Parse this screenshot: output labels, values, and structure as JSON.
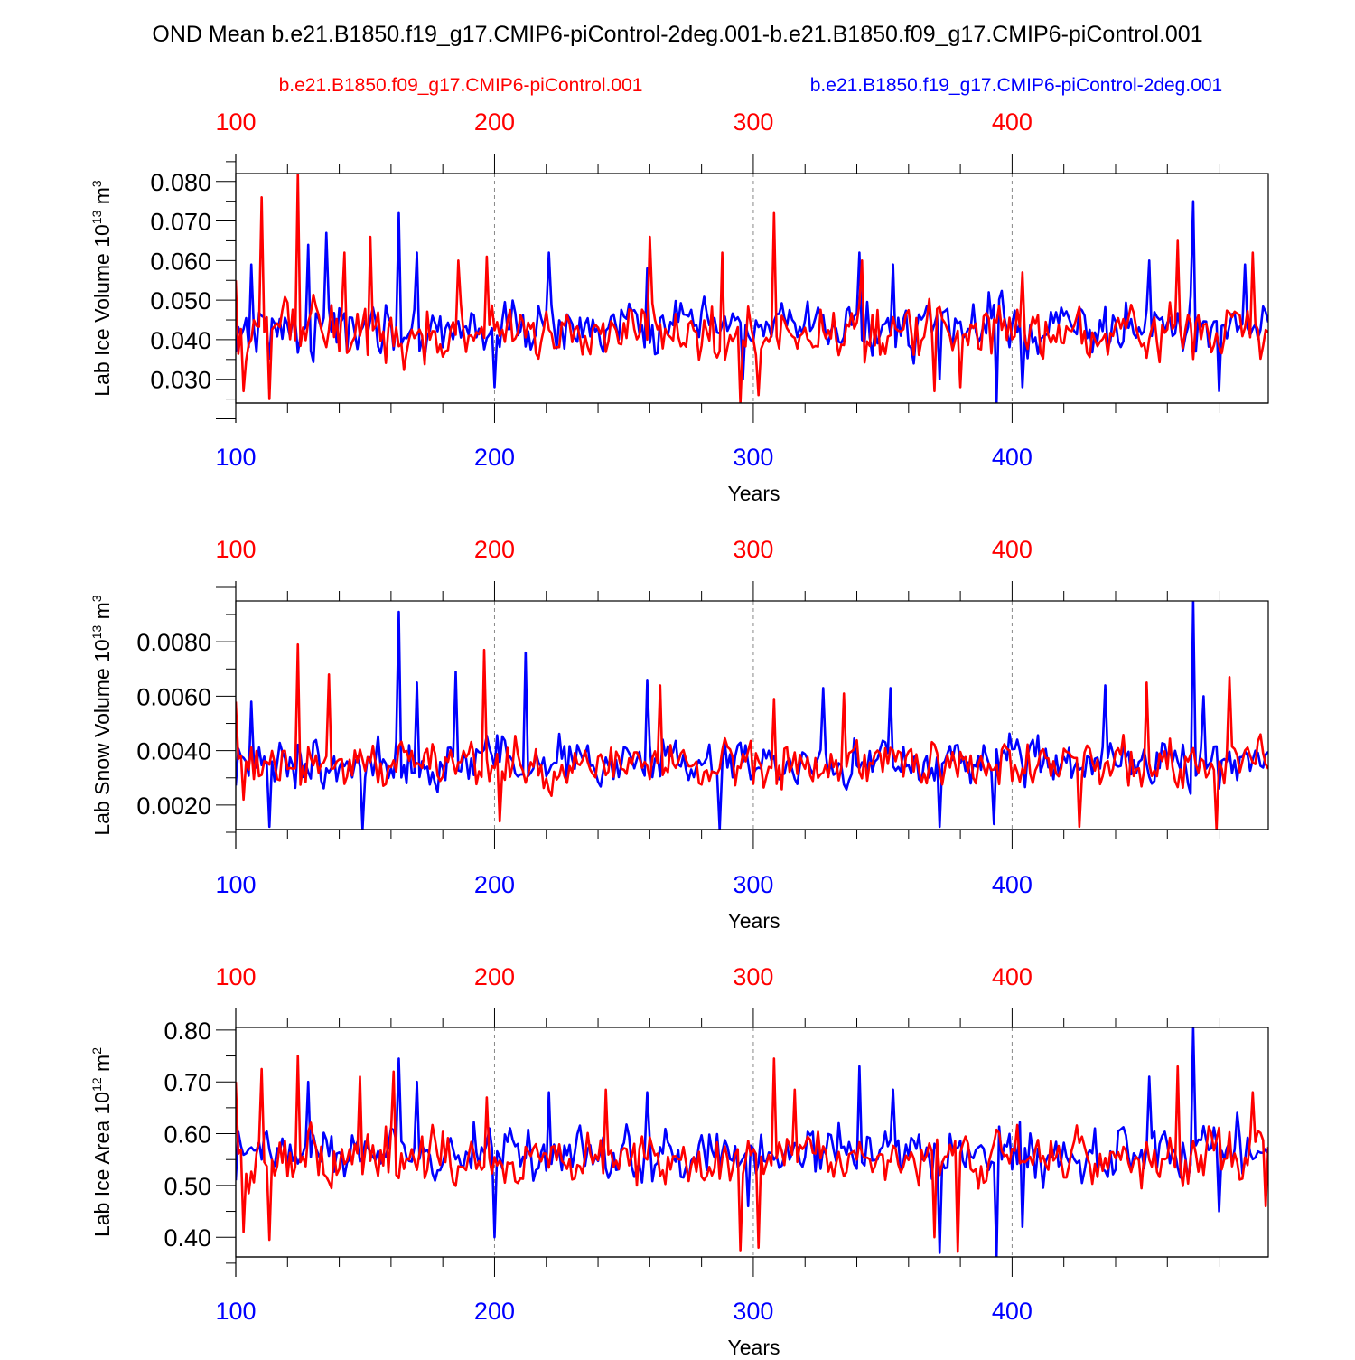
{
  "title": "OND Mean b.e21.B1850.f19_g17.CMIP6-piControl-2deg.001-b.e21.B1850.f09_g17.CMIP6-piControl.001",
  "colors": {
    "red_series": "#ff0000",
    "blue_series": "#0000ff",
    "axis": "#000000",
    "grid": "#888888"
  },
  "legend": {
    "red": "b.e21.B1850.f09_g17.CMIP6-piControl.001",
    "blue": "b.e21.B1850.f19_g17.CMIP6-piControl-2deg.001"
  },
  "chart_data": [
    {
      "type": "line",
      "title": "",
      "xlabel": "Years",
      "ylabel": {
        "pre": "Lab Ice Volume 10",
        "sup1": "13",
        "mid": " m",
        "sup2": "3"
      },
      "xlim": [
        100,
        499
      ],
      "ylim": [
        0.024,
        0.082
      ],
      "xticks": [
        "100",
        "200",
        "300",
        "400"
      ],
      "yticks": [
        {
          "v": 0.03,
          "label": "0.030"
        },
        {
          "v": 0.04,
          "label": "0.040"
        },
        {
          "v": 0.05,
          "label": "0.050"
        },
        {
          "v": 0.06,
          "label": "0.060"
        },
        {
          "v": 0.07,
          "label": "0.070"
        },
        {
          "v": 0.08,
          "label": "0.080"
        }
      ],
      "grid": "vertical dashed at 200, 300, 400",
      "series": [
        {
          "name": "b.e21.B1850.f19_g17.CMIP6-piControl-2deg.001",
          "color": "#0000ff",
          "summary": {
            "mean": 0.043,
            "amplitude": 0.008,
            "min": 0.024,
            "max": 0.075,
            "peaks": [
              [
                106,
                0.059
              ],
              [
                128,
                0.064
              ],
              [
                135,
                0.067
              ],
              [
                163,
                0.072
              ],
              [
                170,
                0.062
              ],
              [
                221,
                0.062
              ],
              [
                259,
                0.058
              ],
              [
                341,
                0.062
              ],
              [
                354,
                0.059
              ],
              [
                391,
                0.052
              ],
              [
                453,
                0.06
              ],
              [
                470,
                0.075
              ],
              [
                490,
                0.059
              ]
            ],
            "troughs": [
              [
                100,
                0.037
              ],
              [
                200,
                0.028
              ],
              [
                296,
                0.03
              ],
              [
                372,
                0.03
              ],
              [
                394,
                0.024
              ],
              [
                404,
                0.028
              ],
              [
                480,
                0.027
              ]
            ]
          }
        },
        {
          "name": "b.e21.B1850.f09_g17.CMIP6-piControl.001",
          "color": "#ff0000",
          "summary": {
            "mean": 0.042,
            "amplitude": 0.0085,
            "min": 0.024,
            "max": 0.082,
            "peaks": [
              [
                100,
                0.055
              ],
              [
                110,
                0.076
              ],
              [
                124,
                0.082
              ],
              [
                142,
                0.062
              ],
              [
                152,
                0.066
              ],
              [
                186,
                0.06
              ],
              [
                197,
                0.061
              ],
              [
                260,
                0.066
              ],
              [
                288,
                0.062
              ],
              [
                308,
                0.072
              ],
              [
                342,
                0.06
              ],
              [
                404,
                0.057
              ],
              [
                464,
                0.065
              ],
              [
                493,
                0.062
              ]
            ],
            "troughs": [
              [
                103,
                0.027
              ],
              [
                113,
                0.025
              ],
              [
                295,
                0.024
              ],
              [
                302,
                0.026
              ],
              [
                370,
                0.027
              ],
              [
                380,
                0.028
              ]
            ]
          }
        }
      ]
    },
    {
      "type": "line",
      "title": "",
      "xlabel": "Years",
      "ylabel": {
        "pre": "Lab Snow Volume 10",
        "sup1": "13",
        "mid": " m",
        "sup2": "3"
      },
      "xlim": [
        100,
        499
      ],
      "ylim": [
        0.0011,
        0.0095
      ],
      "xticks": [
        "100",
        "200",
        "300",
        "400"
      ],
      "yticks": [
        {
          "v": 0.002,
          "label": "0.0020"
        },
        {
          "v": 0.004,
          "label": "0.0040"
        },
        {
          "v": 0.006,
          "label": "0.0060"
        },
        {
          "v": 0.008,
          "label": "0.0080"
        }
      ],
      "grid": "vertical dashed at 200, 300, 400",
      "series": [
        {
          "name": "b.e21.B1850.f19_g17.CMIP6-piControl-2deg.001",
          "color": "#0000ff",
          "summary": {
            "mean": 0.0036,
            "amplitude": 0.0011,
            "min": 0.0011,
            "max": 0.0095,
            "peaks": [
              [
                106,
                0.0058
              ],
              [
                163,
                0.0091
              ],
              [
                170,
                0.0065
              ],
              [
                185,
                0.0069
              ],
              [
                212,
                0.0076
              ],
              [
                259,
                0.0066
              ],
              [
                327,
                0.0063
              ],
              [
                353,
                0.0063
              ],
              [
                436,
                0.0064
              ],
              [
                470,
                0.0095
              ],
              [
                474,
                0.006
              ]
            ],
            "troughs": [
              [
                113,
                0.0012
              ],
              [
                149,
                0.0011
              ],
              [
                287,
                0.0011
              ],
              [
                372,
                0.0012
              ],
              [
                393,
                0.0013
              ]
            ]
          }
        },
        {
          "name": "b.e21.B1850.f09_g17.CMIP6-piControl.001",
          "color": "#ff0000",
          "summary": {
            "mean": 0.0035,
            "amplitude": 0.0011,
            "min": 0.0011,
            "max": 0.008,
            "peaks": [
              [
                100,
                0.0058
              ],
              [
                124,
                0.0079
              ],
              [
                136,
                0.0068
              ],
              [
                196,
                0.0077
              ],
              [
                264,
                0.0064
              ],
              [
                308,
                0.0059
              ],
              [
                335,
                0.0061
              ],
              [
                452,
                0.0065
              ],
              [
                484,
                0.0067
              ]
            ],
            "troughs": [
              [
                103,
                0.0022
              ],
              [
                202,
                0.0014
              ],
              [
                426,
                0.0012
              ],
              [
                479,
                0.0011
              ]
            ]
          }
        }
      ]
    },
    {
      "type": "line",
      "title": "",
      "xlabel": "Years",
      "ylabel": {
        "pre": "Lab Ice Area 10",
        "sup1": "12",
        "mid": " m",
        "sup2": "2"
      },
      "xlim": [
        100,
        499
      ],
      "ylim": [
        0.362,
        0.805
      ],
      "xticks": [
        "100",
        "200",
        "300",
        "400"
      ],
      "yticks": [
        {
          "v": 0.4,
          "label": "0.40"
        },
        {
          "v": 0.5,
          "label": "0.50"
        },
        {
          "v": 0.6,
          "label": "0.60"
        },
        {
          "v": 0.7,
          "label": "0.70"
        },
        {
          "v": 0.8,
          "label": "0.80"
        }
      ],
      "grid": "vertical dashed at 200, 300, 400",
      "series": [
        {
          "name": "b.e21.B1850.f19_g17.CMIP6-piControl-2deg.001",
          "color": "#0000ff",
          "summary": {
            "mean": 0.56,
            "amplitude": 0.065,
            "min": 0.362,
            "max": 0.805,
            "peaks": [
              [
                128,
                0.7
              ],
              [
                163,
                0.745
              ],
              [
                170,
                0.7
              ],
              [
                221,
                0.68
              ],
              [
                259,
                0.68
              ],
              [
                341,
                0.73
              ],
              [
                354,
                0.685
              ],
              [
                453,
                0.71
              ],
              [
                470,
                0.805
              ],
              [
                487,
                0.64
              ]
            ],
            "troughs": [
              [
                100,
                0.51
              ],
              [
                200,
                0.4
              ],
              [
                298,
                0.46
              ],
              [
                372,
                0.37
              ],
              [
                394,
                0.362
              ],
              [
                404,
                0.42
              ],
              [
                480,
                0.45
              ]
            ]
          }
        },
        {
          "name": "b.e21.B1850.f09_g17.CMIP6-piControl.001",
          "color": "#ff0000",
          "summary": {
            "mean": 0.55,
            "amplitude": 0.07,
            "min": 0.372,
            "max": 0.75,
            "peaks": [
              [
                100,
                0.7
              ],
              [
                110,
                0.725
              ],
              [
                124,
                0.75
              ],
              [
                148,
                0.71
              ],
              [
                161,
                0.72
              ],
              [
                197,
                0.67
              ],
              [
                243,
                0.685
              ],
              [
                308,
                0.745
              ],
              [
                316,
                0.685
              ],
              [
                464,
                0.73
              ],
              [
                493,
                0.68
              ]
            ],
            "troughs": [
              [
                103,
                0.41
              ],
              [
                113,
                0.395
              ],
              [
                295,
                0.375
              ],
              [
                302,
                0.38
              ],
              [
                370,
                0.4
              ],
              [
                379,
                0.372
              ],
              [
                498,
                0.46
              ]
            ]
          }
        }
      ]
    }
  ]
}
